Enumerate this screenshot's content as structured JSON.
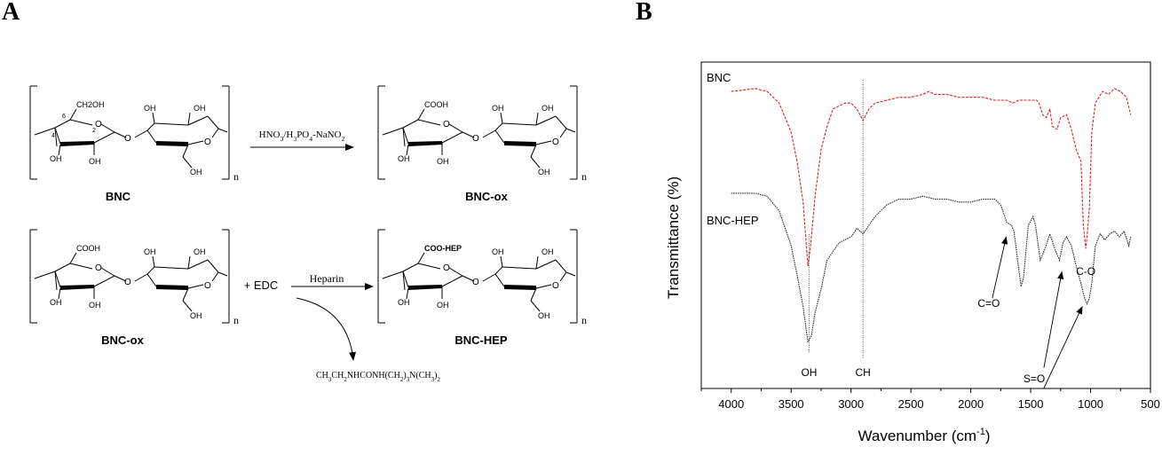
{
  "panel_a": {
    "label": "A",
    "compound_bnc": "BNC",
    "compound_bnc_ox_top": "BNC-ox",
    "compound_bnc_ox_bottom": "BNC-ox",
    "compound_bnc_hep": "BNC-HEP",
    "reagent_oxidation": "HNO3/H3PO4-NaNO2",
    "reagent_plus_edc": "+ EDC",
    "reagent_heparin": "Heparin",
    "byproduct": "CH3CH2NHCONH(CH2)3N(CH3)2",
    "repeat_n": "n",
    "group_ch2oh": "CH2OH",
    "group_cooh": "COOH",
    "group_coo_hep": "COO-HEP",
    "group_oh": "OH",
    "atom_o": "O",
    "atom_num_6": "6",
    "atom_num_4": "4",
    "atom_num_2": "2"
  },
  "panel_b": {
    "label": "B"
  },
  "chart_data": {
    "type": "line",
    "title": "",
    "xlabel": "Wavenumber (cm-1)",
    "ylabel": "Transmittance (%)",
    "xlim": [
      4250,
      500
    ],
    "x_ticks": [
      4000,
      3500,
      3000,
      2500,
      2000,
      1500,
      1000,
      500
    ],
    "x_inverted": true,
    "y_ticks_shown": false,
    "grid": false,
    "series": [
      {
        "name": "BNC",
        "color": "#e02020",
        "style": "dashed",
        "x": [
          4000,
          3800,
          3700,
          3600,
          3500,
          3450,
          3400,
          3360,
          3340,
          3300,
          3250,
          3200,
          3150,
          3100,
          3050,
          3000,
          2950,
          2900,
          2850,
          2800,
          2700,
          2600,
          2500,
          2400,
          2350,
          2300,
          2200,
          2100,
          2000,
          1900,
          1800,
          1700,
          1650,
          1600,
          1550,
          1500,
          1450,
          1430,
          1400,
          1370,
          1340,
          1320,
          1280,
          1250,
          1200,
          1160,
          1120,
          1100,
          1080,
          1060,
          1040,
          1030,
          1010,
          990,
          960,
          900,
          850,
          800,
          750,
          700,
          665
        ],
        "y": [
          96,
          97,
          96,
          92,
          82,
          72,
          58,
          36,
          42,
          60,
          76,
          84,
          90,
          91,
          92,
          92,
          90,
          86,
          90,
          92,
          93,
          94,
          94,
          95,
          96,
          95,
          95,
          94,
          94,
          94,
          93,
          93,
          92,
          93,
          93,
          93,
          93,
          92,
          88,
          87,
          90,
          84,
          83,
          87,
          88,
          83,
          76,
          74,
          72,
          50,
          42,
          46,
          56,
          82,
          92,
          96,
          95,
          97,
          96,
          94,
          88
        ]
      },
      {
        "name": "BNC-HEP",
        "color": "#222222",
        "style": "dotted",
        "x": [
          4000,
          3800,
          3700,
          3600,
          3500,
          3450,
          3400,
          3360,
          3330,
          3300,
          3250,
          3200,
          3100,
          3000,
          2950,
          2900,
          2850,
          2800,
          2700,
          2600,
          2500,
          2400,
          2300,
          2200,
          2100,
          2000,
          1900,
          1800,
          1750,
          1700,
          1660,
          1640,
          1600,
          1580,
          1560,
          1520,
          1480,
          1460,
          1420,
          1380,
          1340,
          1300,
          1260,
          1230,
          1200,
          1160,
          1120,
          1080,
          1050,
          1030,
          1010,
          990,
          960,
          920,
          880,
          840,
          800,
          760,
          720,
          680,
          665
        ],
        "y": [
          61,
          61,
          60,
          55,
          43,
          33,
          22,
          10,
          12,
          20,
          28,
          38,
          44,
          46,
          49,
          47,
          50,
          53,
          57,
          59,
          59,
          60,
          59,
          59,
          58,
          58,
          59,
          59,
          57,
          51,
          50,
          48,
          35,
          29,
          32,
          50,
          53,
          50,
          38,
          42,
          47,
          42,
          38,
          44,
          46,
          43,
          36,
          30,
          25,
          23,
          25,
          30,
          43,
          47,
          45,
          47,
          48,
          46,
          48,
          43,
          46
        ]
      }
    ],
    "annotations": [
      {
        "text": "OH",
        "x": 3350
      },
      {
        "text": "CH",
        "x": 2900
      },
      {
        "text": "C-O",
        "x": 1040
      },
      {
        "text": "C=O",
        "x": 1700
      },
      {
        "text": "S=O",
        "x": 1230
      },
      {
        "text": "S=O",
        "x": 1060
      }
    ]
  }
}
